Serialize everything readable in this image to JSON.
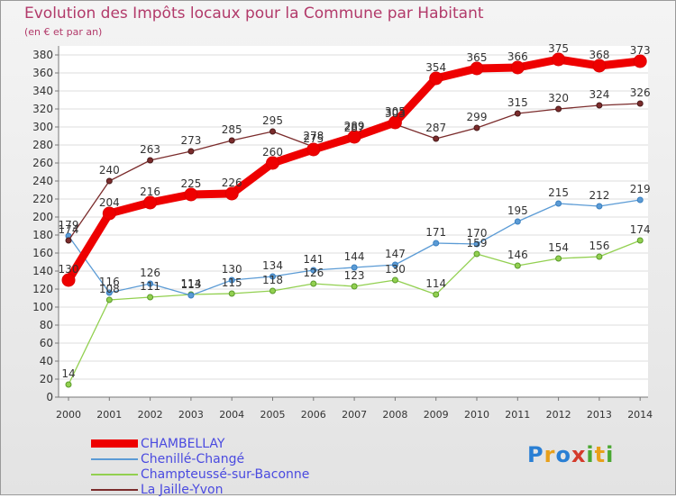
{
  "header": {
    "title": "Evolution des Impôts locaux pour la Commune par Habitant",
    "subtitle": "(en € et par an)"
  },
  "logo": {
    "letters": [
      "P",
      "r",
      "o",
      "x",
      "i",
      "t",
      "i"
    ],
    "colors": [
      "#2a7fd4",
      "#e8a01a",
      "#2a7fd4",
      "#d43a2a",
      "#4aa832",
      "#e8a01a",
      "#4aa832"
    ]
  },
  "chart_data": {
    "type": "line",
    "title": "Evolution des Impôts locaux pour la Commune par Habitant",
    "subtitle": "(en € et par an)",
    "x": [
      "2000",
      "2001",
      "2002",
      "2003",
      "2004",
      "2005",
      "2006",
      "2007",
      "2008",
      "2009",
      "2010",
      "2011",
      "2012",
      "2013",
      "2014"
    ],
    "ylim": [
      0,
      380
    ],
    "yticks": [
      0,
      20,
      40,
      60,
      80,
      100,
      120,
      140,
      160,
      180,
      200,
      220,
      240,
      260,
      280,
      300,
      320,
      340,
      360,
      380
    ],
    "grid": "horizontal",
    "legend_position": "bottom-left",
    "series": [
      {
        "name": "CHAMBELLAY",
        "color": "#ee0000",
        "values": [
          130,
          204,
          216,
          225,
          226,
          260,
          275,
          289,
          305,
          354,
          365,
          366,
          375,
          368,
          373
        ]
      },
      {
        "name": "Chenillé-Changé",
        "color": "#5b9bd5",
        "values": [
          179,
          116,
          126,
          113,
          130,
          134,
          141,
          144,
          147,
          171,
          170,
          195,
          215,
          212,
          219
        ]
      },
      {
        "name": "Champteussé-sur-Baconne",
        "color": "#92d050",
        "values": [
          14,
          108,
          111,
          114,
          115,
          118,
          126,
          123,
          130,
          114,
          159,
          146,
          154,
          156,
          174
        ]
      },
      {
        "name": "La Jaille-Yvon",
        "color": "#7b2c2c",
        "values": [
          174,
          240,
          263,
          273,
          285,
          295,
          278,
          287,
          303,
          287,
          299,
          315,
          320,
          324,
          326
        ]
      }
    ],
    "data_labels": [
      [
        "130",
        "204",
        "216",
        "225",
        "226",
        "260",
        "275",
        "289",
        "305",
        "354",
        "365",
        "366",
        "375",
        "368",
        "373"
      ],
      [
        "179",
        "116",
        "126",
        "113",
        "130",
        "134",
        "141",
        "144",
        "147",
        "171",
        "170",
        "195",
        "215",
        "212",
        "219"
      ],
      [
        "14",
        "108",
        "111",
        "114",
        "115",
        "118",
        "126",
        "123",
        "130",
        "114",
        "159",
        "146",
        "154",
        "156",
        "174"
      ],
      [
        "174",
        "240",
        "263",
        "273",
        "285",
        "295",
        "278",
        "287",
        "303",
        "287",
        "299",
        "315",
        "320",
        "324",
        "326"
      ]
    ]
  }
}
